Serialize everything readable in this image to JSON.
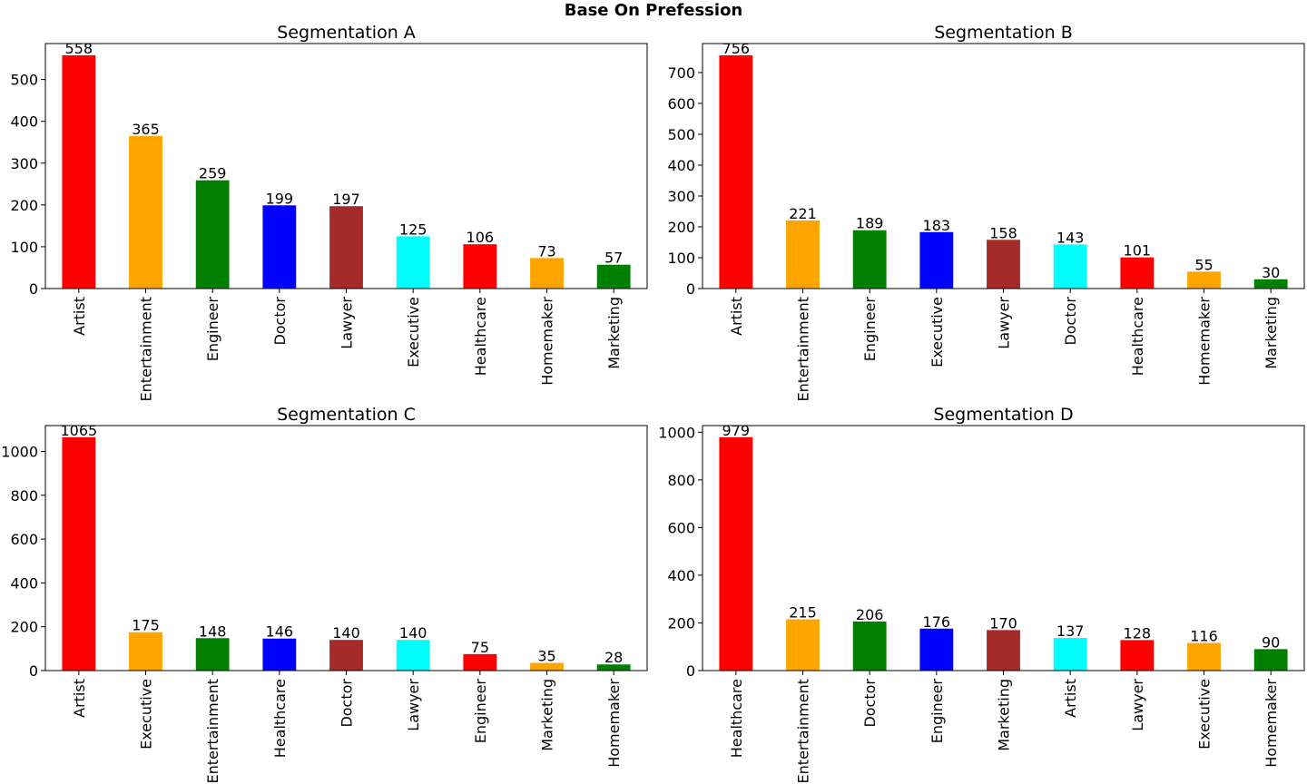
{
  "figure_title": "Base On Prefession",
  "chart_data": [
    {
      "type": "bar",
      "title": "Segmentation A",
      "categories": [
        "Artist",
        "Entertainment",
        "Engineer",
        "Doctor",
        "Lawyer",
        "Executive",
        "Healthcare",
        "Homemaker",
        "Marketing"
      ],
      "values": [
        558,
        365,
        259,
        199,
        197,
        125,
        106,
        73,
        57
      ],
      "colors": [
        "#ff0000",
        "#ffa500",
        "#008000",
        "#0000ff",
        "#a52a2a",
        "#00ffff",
        "#ff0000",
        "#ffa500",
        "#008000"
      ],
      "ylim": [
        0,
        586
      ],
      "yticks": [
        0,
        100,
        200,
        300,
        400,
        500
      ],
      "xlabel": "",
      "ylabel": ""
    },
    {
      "type": "bar",
      "title": "Segmentation B",
      "categories": [
        "Artist",
        "Entertainment",
        "Engineer",
        "Executive",
        "Lawyer",
        "Doctor",
        "Healthcare",
        "Homemaker",
        "Marketing"
      ],
      "values": [
        756,
        221,
        189,
        183,
        158,
        143,
        101,
        55,
        30
      ],
      "colors": [
        "#ff0000",
        "#ffa500",
        "#008000",
        "#0000ff",
        "#a52a2a",
        "#00ffff",
        "#ff0000",
        "#ffa500",
        "#008000"
      ],
      "ylim": [
        0,
        794
      ],
      "yticks": [
        0,
        100,
        200,
        300,
        400,
        500,
        600,
        700
      ],
      "xlabel": "",
      "ylabel": ""
    },
    {
      "type": "bar",
      "title": "Segmentation C",
      "categories": [
        "Artist",
        "Executive",
        "Entertainment",
        "Healthcare",
        "Doctor",
        "Lawyer",
        "Engineer",
        "Marketing",
        "Homemaker"
      ],
      "values": [
        1065,
        175,
        148,
        146,
        140,
        140,
        75,
        35,
        28
      ],
      "colors": [
        "#ff0000",
        "#ffa500",
        "#008000",
        "#0000ff",
        "#a52a2a",
        "#00ffff",
        "#ff0000",
        "#ffa500",
        "#008000"
      ],
      "ylim": [
        0,
        1118
      ],
      "yticks": [
        0,
        200,
        400,
        600,
        800,
        1000
      ],
      "xlabel": "",
      "ylabel": ""
    },
    {
      "type": "bar",
      "title": "Segmentation D",
      "categories": [
        "Healthcare",
        "Entertainment",
        "Doctor",
        "Engineer",
        "Marketing",
        "Artist",
        "Lawyer",
        "Executive",
        "Homemaker"
      ],
      "values": [
        979,
        215,
        206,
        176,
        170,
        137,
        128,
        116,
        90
      ],
      "colors": [
        "#ff0000",
        "#ffa500",
        "#008000",
        "#0000ff",
        "#a52a2a",
        "#00ffff",
        "#ff0000",
        "#ffa500",
        "#008000"
      ],
      "ylim": [
        0,
        1028
      ],
      "yticks": [
        0,
        200,
        400,
        600,
        800,
        1000
      ],
      "xlabel": "",
      "ylabel": ""
    }
  ]
}
